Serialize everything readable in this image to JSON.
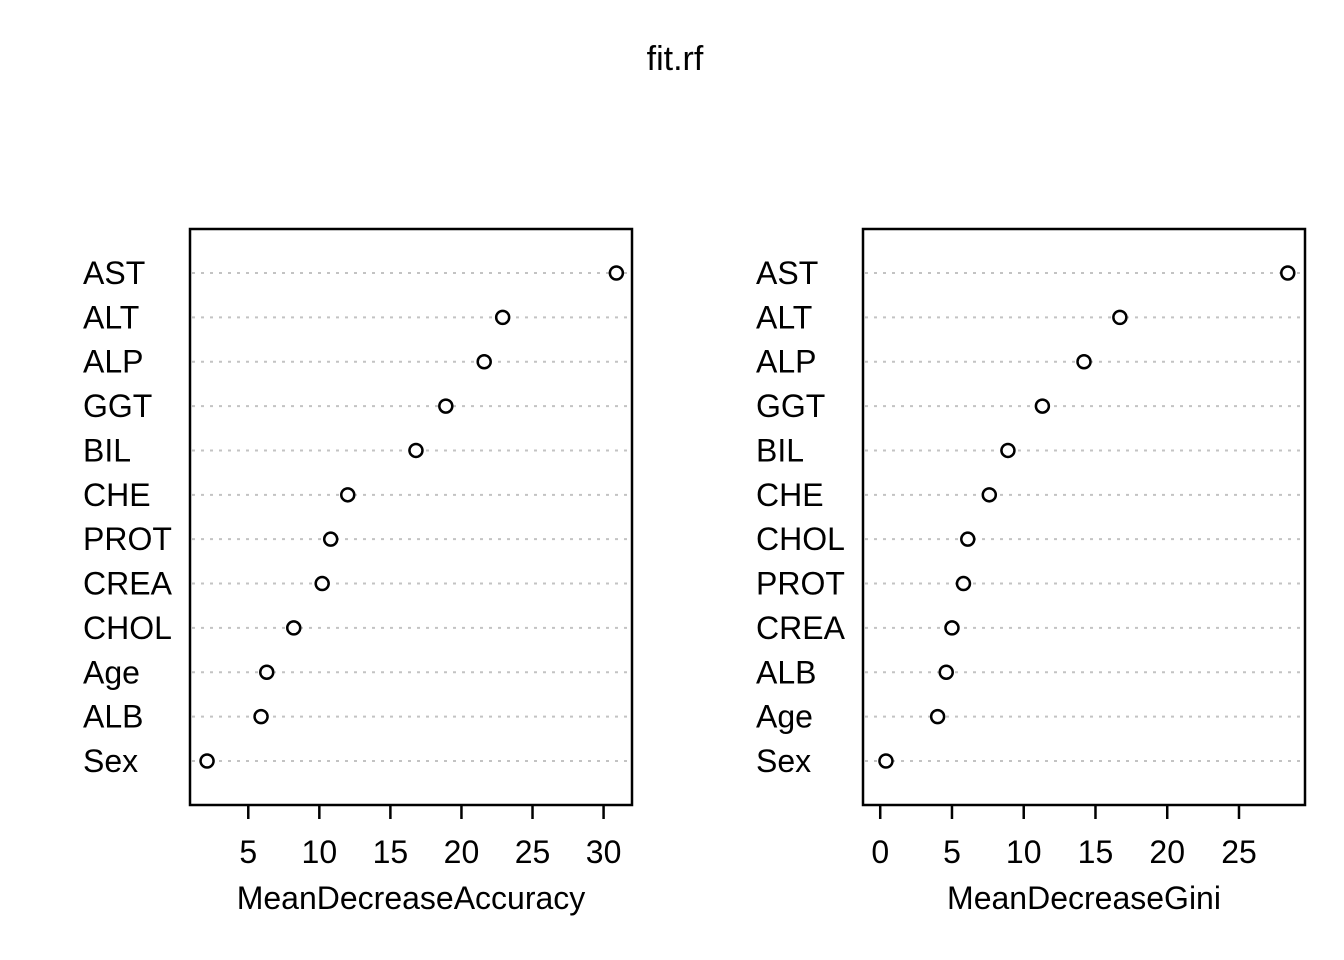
{
  "title": "fit.rf",
  "colors": {
    "background": "#ffffff",
    "text": "#000000",
    "grid": "#c3c3c3",
    "frame": "#000000",
    "point_stroke": "#000000",
    "point_fill": "#ffffff"
  },
  "chart_data": [
    {
      "type": "scatter",
      "variant": "dotchart",
      "title": "fit.rf",
      "xlabel": "MeanDecreaseAccuracy",
      "ylabel": "",
      "categories": [
        "AST",
        "ALT",
        "ALP",
        "GGT",
        "BIL",
        "CHE",
        "PROT",
        "CREA",
        "CHOL",
        "Age",
        "ALB",
        "Sex"
      ],
      "values": [
        30.9,
        22.9,
        21.6,
        18.9,
        16.8,
        12.0,
        10.8,
        10.2,
        8.2,
        6.3,
        5.9,
        2.1
      ],
      "category_order": "top-to-bottom",
      "xticks": [
        5,
        10,
        15,
        20,
        25,
        30
      ],
      "xlim": [
        0.9,
        32.0
      ],
      "grid": "horizontal-dotted",
      "legend": "none",
      "marker": "open-circle"
    },
    {
      "type": "scatter",
      "variant": "dotchart",
      "title": "fit.rf",
      "xlabel": "MeanDecreaseGini",
      "ylabel": "",
      "categories": [
        "AST",
        "ALT",
        "ALP",
        "GGT",
        "BIL",
        "CHE",
        "CHOL",
        "PROT",
        "CREA",
        "ALB",
        "Age",
        "Sex"
      ],
      "values": [
        28.4,
        16.7,
        14.2,
        11.3,
        8.9,
        7.6,
        6.1,
        5.8,
        5.0,
        4.6,
        4.0,
        0.4
      ],
      "category_order": "top-to-bottom",
      "xticks": [
        0,
        5,
        10,
        15,
        20,
        25
      ],
      "xlim": [
        -1.2,
        29.6
      ],
      "grid": "horizontal-dotted",
      "legend": "none",
      "marker": "open-circle"
    }
  ]
}
